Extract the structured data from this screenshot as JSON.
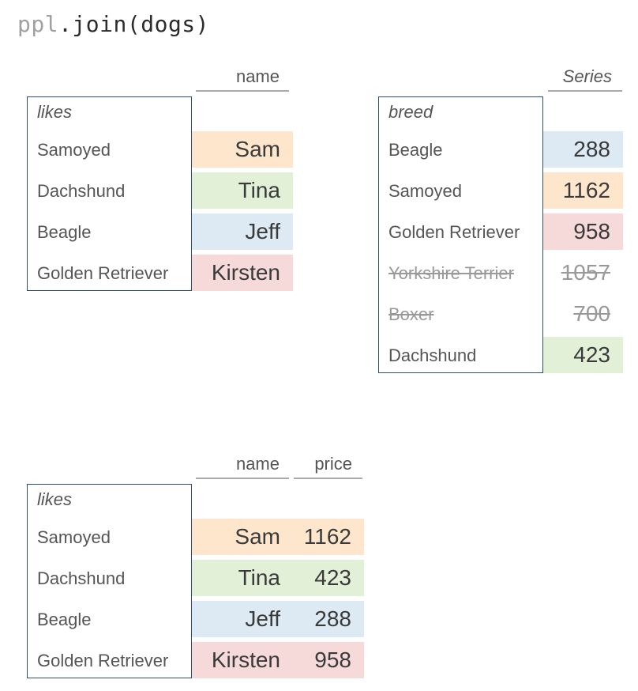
{
  "code": {
    "object": "ppl",
    "rest": ".join(dogs)"
  },
  "colors": {
    "orange": "#fde6cc",
    "green": "#e2f0d8",
    "blue": "#dde9f3",
    "red": "#f6dada",
    "border": "#2e4d6d"
  },
  "ppl": {
    "index_name": "likes",
    "column": "name",
    "rows": [
      {
        "label": "Samoyed",
        "name": "Sam",
        "color": "orange"
      },
      {
        "label": "Dachshund",
        "name": "Tina",
        "color": "green"
      },
      {
        "label": "Beagle",
        "name": "Jeff",
        "color": "blue"
      },
      {
        "label": "Golden Retriever",
        "name": "Kirsten",
        "color": "red"
      }
    ]
  },
  "dogs": {
    "index_name": "breed",
    "column": "Series",
    "rows": [
      {
        "label": "Beagle",
        "value": "288",
        "color": "blue",
        "dropped": false
      },
      {
        "label": "Samoyed",
        "value": "1162",
        "color": "orange",
        "dropped": false
      },
      {
        "label": "Golden Retriever",
        "value": "958",
        "color": "red",
        "dropped": false
      },
      {
        "label": "Yorkshire Terrier",
        "value": "1057",
        "color": "none",
        "dropped": true
      },
      {
        "label": "Boxer",
        "value": "700",
        "color": "none",
        "dropped": true
      },
      {
        "label": "Dachshund",
        "value": "423",
        "color": "green",
        "dropped": false
      }
    ]
  },
  "result": {
    "index_name": "likes",
    "columns": [
      "name",
      "price"
    ],
    "rows": [
      {
        "label": "Samoyed",
        "name": "Sam",
        "price": "1162",
        "color": "orange"
      },
      {
        "label": "Dachshund",
        "name": "Tina",
        "price": "423",
        "color": "green"
      },
      {
        "label": "Beagle",
        "name": "Jeff",
        "price": "288",
        "color": "blue"
      },
      {
        "label": "Golden Retriever",
        "name": "Kirsten",
        "price": "958",
        "color": "red"
      }
    ]
  }
}
